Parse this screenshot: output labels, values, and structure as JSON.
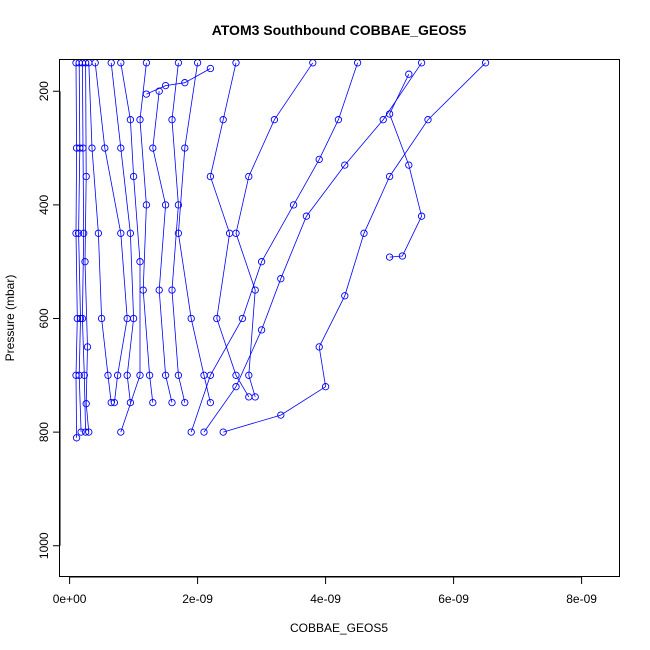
{
  "chart_data": {
    "type": "scatter",
    "title": "ATOM3 Southbound COBBAE_GEOS5",
    "xlabel": "COBBAE_GEOS5",
    "ylabel": "Pressure (mbar)",
    "xlim": [
      -1.5e-10,
      8.6e-09
    ],
    "ylim": [
      1055,
      145
    ],
    "y_reversed": true,
    "grid": false,
    "marker": "open-circle",
    "color": "#0000ff",
    "x_ticks": [
      {
        "value": 0,
        "label": "0e+00"
      },
      {
        "value": 2e-09,
        "label": "2e-09"
      },
      {
        "value": 4e-09,
        "label": "4e-09"
      },
      {
        "value": 6e-09,
        "label": "6e-09"
      },
      {
        "value": 8e-09,
        "label": "8e-09"
      }
    ],
    "y_ticks": [
      {
        "value": 200,
        "label": "200"
      },
      {
        "value": 400,
        "label": "400"
      },
      {
        "value": 600,
        "label": "600"
      },
      {
        "value": 800,
        "label": "800"
      },
      {
        "value": 1000,
        "label": "1000"
      }
    ],
    "series": [
      {
        "points": [
          [
            1e-10,
            150
          ],
          [
            1.1e-10,
            300
          ],
          [
            1e-10,
            450
          ],
          [
            1.2e-10,
            600
          ],
          [
            1e-10,
            700
          ],
          [
            1.1e-10,
            810
          ]
        ]
      },
      {
        "points": [
          [
            1.5e-10,
            150
          ],
          [
            1.6e-10,
            300
          ],
          [
            1.4e-10,
            450
          ],
          [
            1.7e-10,
            600
          ],
          [
            1.5e-10,
            700
          ],
          [
            1.8e-10,
            800
          ]
        ]
      },
      {
        "points": [
          [
            2e-10,
            150
          ],
          [
            2.1e-10,
            300
          ],
          [
            2.2e-10,
            450
          ],
          [
            2e-10,
            600
          ],
          [
            2.3e-10,
            700
          ],
          [
            2.5e-10,
            800
          ]
        ]
      },
      {
        "points": [
          [
            2.5e-10,
            150
          ],
          [
            2.6e-10,
            350
          ],
          [
            2.4e-10,
            500
          ],
          [
            2.8e-10,
            650
          ],
          [
            2.6e-10,
            750
          ],
          [
            3e-10,
            800
          ]
        ]
      },
      {
        "points": [
          [
            3e-10,
            150
          ],
          [
            3.5e-10,
            300
          ],
          [
            4.5e-10,
            450
          ],
          [
            5e-10,
            600
          ],
          [
            6e-10,
            700
          ],
          [
            6.5e-10,
            748
          ]
        ]
      },
      {
        "points": [
          [
            4e-10,
            150
          ],
          [
            5.5e-10,
            300
          ],
          [
            8e-10,
            450
          ],
          [
            9e-10,
            600
          ],
          [
            7.5e-10,
            700
          ],
          [
            7e-10,
            748
          ]
        ]
      },
      {
        "points": [
          [
            6.5e-10,
            150
          ],
          [
            8e-10,
            300
          ],
          [
            9.5e-10,
            450
          ],
          [
            1e-09,
            600
          ],
          [
            9e-10,
            700
          ],
          [
            9.5e-10,
            748
          ]
        ]
      },
      {
        "points": [
          [
            8e-10,
            150
          ],
          [
            9.5e-10,
            250
          ],
          [
            1e-09,
            350
          ],
          [
            1.1e-09,
            500
          ],
          [
            1.1e-09,
            700
          ],
          [
            8e-10,
            800
          ]
        ]
      },
      {
        "points": [
          [
            1.2e-09,
            150
          ],
          [
            1.1e-09,
            250
          ],
          [
            1.2e-09,
            400
          ],
          [
            1.15e-09,
            550
          ],
          [
            1.25e-09,
            700
          ],
          [
            1.3e-09,
            748
          ]
        ]
      },
      {
        "points": [
          [
            1.4e-09,
            200
          ],
          [
            1.3e-09,
            300
          ],
          [
            1.5e-09,
            400
          ],
          [
            1.4e-09,
            550
          ],
          [
            1.5e-09,
            700
          ],
          [
            1.6e-09,
            748
          ]
        ]
      },
      {
        "points": [
          [
            1.7e-09,
            150
          ],
          [
            1.6e-09,
            250
          ],
          [
            1.7e-09,
            400
          ],
          [
            1.6e-09,
            550
          ],
          [
            1.7e-09,
            700
          ],
          [
            1.8e-09,
            748
          ]
        ]
      },
      {
        "points": [
          [
            2e-09,
            150
          ],
          [
            1.8e-09,
            300
          ],
          [
            1.7e-09,
            450
          ],
          [
            1.9e-09,
            600
          ],
          [
            2.1e-09,
            700
          ],
          [
            2.2e-09,
            748
          ]
        ]
      },
      {
        "points": [
          [
            2.6e-09,
            150
          ],
          [
            2.4e-09,
            250
          ],
          [
            2.2e-09,
            350
          ],
          [
            2.5e-09,
            450
          ],
          [
            2.3e-09,
            600
          ],
          [
            2.6e-09,
            700
          ],
          [
            2.8e-09,
            738
          ]
        ]
      },
      {
        "points": [
          [
            3.8e-09,
            150
          ],
          [
            3.2e-09,
            250
          ],
          [
            2.8e-09,
            350
          ],
          [
            2.6e-09,
            450
          ],
          [
            2.9e-09,
            550
          ],
          [
            2.8e-09,
            700
          ],
          [
            2.9e-09,
            738
          ]
        ]
      },
      {
        "points": [
          [
            4.5e-09,
            150
          ],
          [
            4.2e-09,
            250
          ],
          [
            3.9e-09,
            320
          ],
          [
            3.5e-09,
            400
          ],
          [
            3e-09,
            500
          ],
          [
            2.7e-09,
            600
          ],
          [
            2.2e-09,
            700
          ],
          [
            1.9e-09,
            800
          ]
        ]
      },
      {
        "points": [
          [
            5.5e-09,
            150
          ],
          [
            4.9e-09,
            250
          ],
          [
            4.3e-09,
            330
          ],
          [
            3.7e-09,
            420
          ],
          [
            3.3e-09,
            530
          ],
          [
            3e-09,
            620
          ],
          [
            2.6e-09,
            720
          ],
          [
            2.1e-09,
            800
          ]
        ]
      },
      {
        "points": [
          [
            6.5e-09,
            150
          ],
          [
            5.6e-09,
            250
          ],
          [
            5e-09,
            350
          ],
          [
            4.6e-09,
            450
          ],
          [
            4.3e-09,
            560
          ],
          [
            3.9e-09,
            650
          ],
          [
            4e-09,
            720
          ],
          [
            3.3e-09,
            770
          ],
          [
            2.4e-09,
            800
          ]
        ]
      },
      {
        "points": [
          [
            5.3e-09,
            170
          ],
          [
            5e-09,
            240
          ],
          [
            5.3e-09,
            330
          ],
          [
            5.5e-09,
            420
          ],
          [
            5.2e-09,
            490
          ],
          [
            5e-09,
            492
          ]
        ]
      },
      {
        "points": [
          [
            1.2e-09,
            205
          ],
          [
            1.5e-09,
            190
          ],
          [
            1.8e-09,
            185
          ],
          [
            2.2e-09,
            160
          ]
        ]
      }
    ]
  }
}
